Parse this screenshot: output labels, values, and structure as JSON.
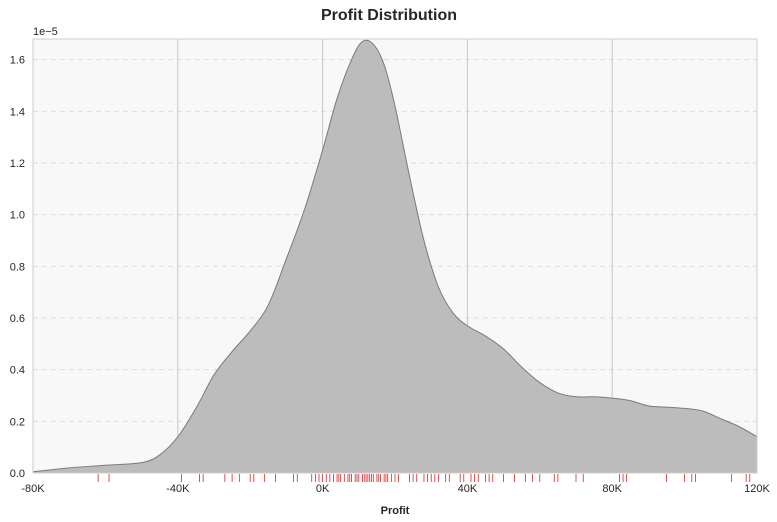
{
  "chart_data": {
    "type": "area",
    "title": "Profit Distribution",
    "xlabel": "Profit",
    "ylabel": "",
    "y_offset_label": "1e−5",
    "xlim": [
      -80000,
      120000
    ],
    "ylim": [
      0,
      1.68
    ],
    "x_ticks": [
      -80000,
      -40000,
      0,
      40000,
      80000,
      120000
    ],
    "x_tick_labels": [
      "-80K",
      "-40K",
      "0K",
      "40K",
      "80K",
      "120K"
    ],
    "y_ticks": [
      0.0,
      0.2,
      0.4,
      0.6,
      0.8,
      1.0,
      1.2,
      1.4,
      1.6
    ],
    "y_tick_labels": [
      "0.0",
      "0.2",
      "0.4",
      "0.6",
      "0.8",
      "1.0",
      "1.2",
      "1.4",
      "1.6"
    ],
    "grid": {
      "x": "solid",
      "y": "dashed"
    },
    "density_curve": {
      "x": [
        -80000,
        -70000,
        -60000,
        -50000,
        -45000,
        -40000,
        -35000,
        -30000,
        -25000,
        -20000,
        -15000,
        -10000,
        -5000,
        0,
        4000,
        8000,
        11000,
        14000,
        17000,
        20000,
        24000,
        28000,
        32000,
        36000,
        40000,
        45000,
        50000,
        55000,
        60000,
        65000,
        70000,
        75000,
        80000,
        85000,
        90000,
        95000,
        100000,
        105000,
        110000,
        115000,
        120000
      ],
      "y": [
        0.005,
        0.02,
        0.03,
        0.04,
        0.07,
        0.14,
        0.25,
        0.38,
        0.47,
        0.55,
        0.65,
        0.83,
        1.02,
        1.25,
        1.45,
        1.6,
        1.67,
        1.66,
        1.58,
        1.42,
        1.15,
        0.9,
        0.72,
        0.62,
        0.57,
        0.53,
        0.48,
        0.41,
        0.35,
        0.31,
        0.295,
        0.295,
        0.29,
        0.28,
        0.26,
        0.255,
        0.25,
        0.24,
        0.21,
        0.18,
        0.14
      ]
    },
    "rug": [
      -62000,
      -59000,
      -39000,
      -34000,
      -33000,
      -27000,
      -25000,
      -23000,
      -20000,
      -19000,
      -16000,
      -13000,
      -8000,
      -7000,
      -3000,
      -2000,
      -1000,
      0,
      1000,
      2000,
      3000,
      4000,
      4500,
      5000,
      6000,
      7000,
      7500,
      8000,
      9000,
      9500,
      10000,
      11000,
      11500,
      12000,
      12500,
      13000,
      13500,
      14000,
      15000,
      15500,
      16000,
      17000,
      17500,
      18000,
      19000,
      20000,
      21000,
      24000,
      25000,
      26000,
      28000,
      29000,
      30000,
      31000,
      32000,
      34000,
      35000,
      38000,
      39000,
      41000,
      42000,
      43000,
      45000,
      46000,
      47000,
      50000,
      53000,
      56000,
      58000,
      60000,
      64000,
      65000,
      70000,
      72000,
      82000,
      83000,
      84000,
      95000,
      100000,
      102000,
      103000,
      113000,
      117000,
      118000
    ],
    "colors": {
      "fill": "#bcbcbc",
      "line": "#7a7a7a",
      "rug": "#d62728",
      "plot_bg": "#f8f8f8",
      "spine": "#cccccc"
    }
  }
}
